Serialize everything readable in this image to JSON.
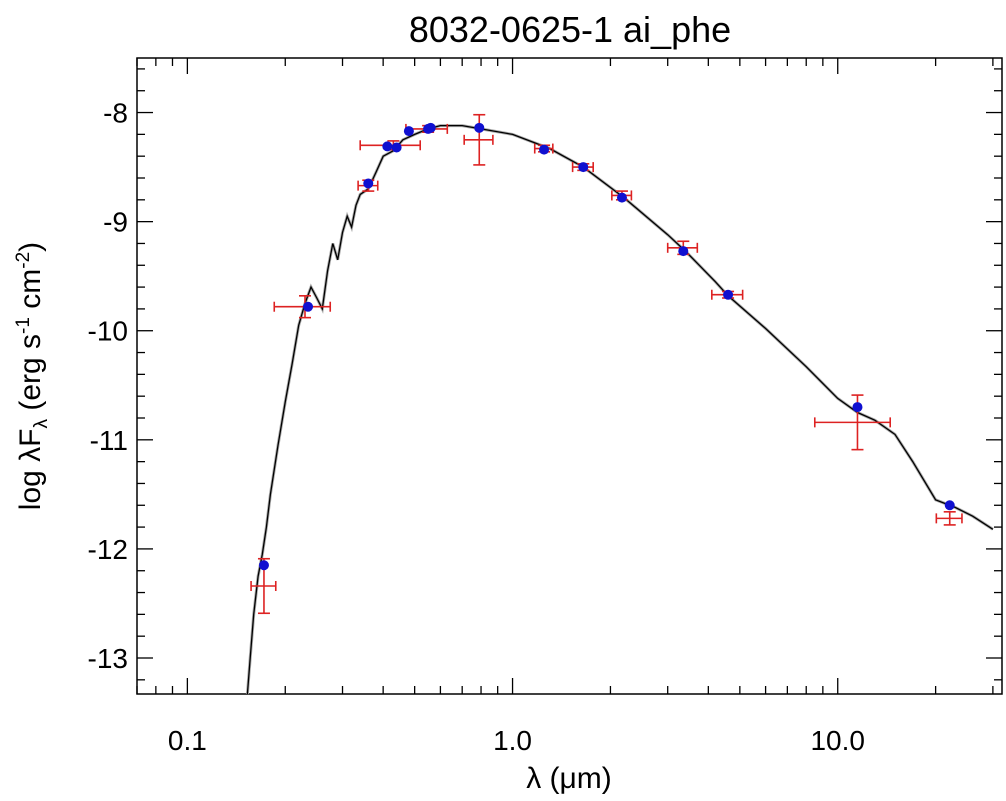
{
  "chart_data": {
    "type": "scatter",
    "title": "8032-0625-1   ai_phe",
    "xlabel_symbol": "λ",
    "xlabel_unit": "(μm)",
    "ylabel_parts": {
      "log": "log ",
      "lambda": "λ",
      "F": "F",
      "sub": "λ",
      "open": " (erg s",
      "exp1": "-1",
      "mid": " cm",
      "exp2": "-2",
      "close": ")"
    },
    "x_scale": "log",
    "xlim": [
      0.07,
      32
    ],
    "ylim": [
      -13.33,
      -7.5
    ],
    "x_ticks": [
      0.1,
      1.0,
      10.0
    ],
    "x_tick_labels": [
      "0.1",
      "1.0",
      "10.0"
    ],
    "y_ticks": [
      -13,
      -12,
      -11,
      -10,
      -9,
      -8
    ],
    "y_tick_labels": [
      "-13",
      "-12",
      "-11",
      "-10",
      "-9",
      "-8"
    ],
    "grid": false,
    "colors": {
      "model_line": "#000000",
      "model_shadow": "#aaaaaa",
      "observed": "#dd2222",
      "synthetic": "#1010d0"
    },
    "model_curve": [
      [
        0.153,
        -13.33
      ],
      [
        0.156,
        -13.0
      ],
      [
        0.16,
        -12.6
      ],
      [
        0.165,
        -12.25
      ],
      [
        0.17,
        -12.05
      ],
      [
        0.175,
        -11.8
      ],
      [
        0.18,
        -11.5
      ],
      [
        0.19,
        -11.05
      ],
      [
        0.2,
        -10.65
      ],
      [
        0.21,
        -10.3
      ],
      [
        0.22,
        -9.95
      ],
      [
        0.23,
        -9.75
      ],
      [
        0.24,
        -9.6
      ],
      [
        0.25,
        -9.7
      ],
      [
        0.26,
        -9.8
      ],
      [
        0.27,
        -9.45
      ],
      [
        0.28,
        -9.2
      ],
      [
        0.29,
        -9.35
      ],
      [
        0.3,
        -9.1
      ],
      [
        0.31,
        -8.95
      ],
      [
        0.32,
        -9.05
      ],
      [
        0.33,
        -8.85
      ],
      [
        0.34,
        -8.75
      ],
      [
        0.36,
        -8.7
      ],
      [
        0.38,
        -8.55
      ],
      [
        0.4,
        -8.4
      ],
      [
        0.43,
        -8.35
      ],
      [
        0.46,
        -8.25
      ],
      [
        0.5,
        -8.2
      ],
      [
        0.55,
        -8.15
      ],
      [
        0.6,
        -8.12
      ],
      [
        0.7,
        -8.12
      ],
      [
        0.8,
        -8.15
      ],
      [
        1.0,
        -8.2
      ],
      [
        1.3,
        -8.33
      ],
      [
        1.65,
        -8.5
      ],
      [
        2.2,
        -8.78
      ],
      [
        3.0,
        -9.12
      ],
      [
        3.4,
        -9.27
      ],
      [
        4.2,
        -9.55
      ],
      [
        4.6,
        -9.68
      ],
      [
        6.0,
        -9.98
      ],
      [
        8.0,
        -10.33
      ],
      [
        10.0,
        -10.62
      ],
      [
        11.5,
        -10.75
      ],
      [
        13.0,
        -10.82
      ],
      [
        15.0,
        -10.95
      ],
      [
        17.0,
        -11.2
      ],
      [
        20.0,
        -11.55
      ],
      [
        23.0,
        -11.62
      ],
      [
        26.0,
        -11.7
      ],
      [
        30.0,
        -11.82
      ]
    ],
    "observed": [
      {
        "x": 0.172,
        "y": -12.34,
        "xerr": 0.015,
        "yerr": 0.25
      },
      {
        "x": 0.23,
        "y": -9.78,
        "xerr": 0.045,
        "yerr": 0.1
      },
      {
        "x": 0.36,
        "y": -8.67,
        "xerr": 0.025,
        "yerr": 0.05
      },
      {
        "x": 0.43,
        "y": -8.3,
        "xerr": 0.09,
        "yerr": 0.04
      },
      {
        "x": 0.55,
        "y": -8.15,
        "xerr": 0.08,
        "yerr": 0.03
      },
      {
        "x": 0.79,
        "y": -8.25,
        "xerr": 0.08,
        "yerr": 0.23
      },
      {
        "x": 1.25,
        "y": -8.33,
        "xerr": 0.08,
        "yerr": 0.03
      },
      {
        "x": 1.65,
        "y": -8.5,
        "xerr": 0.12,
        "yerr": 0.03
      },
      {
        "x": 2.17,
        "y": -8.76,
        "xerr": 0.15,
        "yerr": 0.04
      },
      {
        "x": 3.35,
        "y": -9.24,
        "xerr": 0.35,
        "yerr": 0.06
      },
      {
        "x": 4.6,
        "y": -9.67,
        "xerr": 0.5,
        "yerr": 0.03
      },
      {
        "x": 11.5,
        "y": -10.84,
        "xerr": 3.0,
        "yerr": 0.25
      },
      {
        "x": 22.1,
        "y": -11.72,
        "xerr": 2.0,
        "yerr": 0.06
      }
    ],
    "synthetic": [
      {
        "x": 0.172,
        "y": -12.15
      },
      {
        "x": 0.235,
        "y": -9.78
      },
      {
        "x": 0.36,
        "y": -8.65
      },
      {
        "x": 0.412,
        "y": -8.31
      },
      {
        "x": 0.44,
        "y": -8.32
      },
      {
        "x": 0.48,
        "y": -8.17
      },
      {
        "x": 0.55,
        "y": -8.15
      },
      {
        "x": 0.56,
        "y": -8.14
      },
      {
        "x": 0.79,
        "y": -8.14
      },
      {
        "x": 1.25,
        "y": -8.34
      },
      {
        "x": 1.65,
        "y": -8.5
      },
      {
        "x": 2.17,
        "y": -8.78
      },
      {
        "x": 3.35,
        "y": -9.27
      },
      {
        "x": 4.6,
        "y": -9.67
      },
      {
        "x": 11.5,
        "y": -10.7
      },
      {
        "x": 22.1,
        "y": -11.6
      }
    ]
  }
}
